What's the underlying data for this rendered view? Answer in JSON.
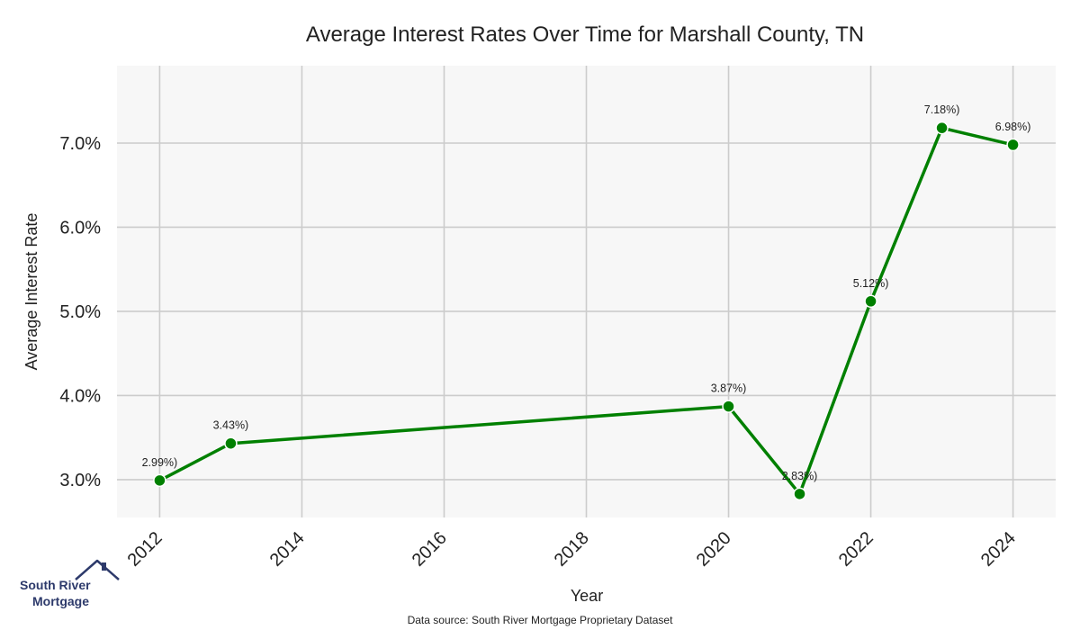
{
  "chart_data": {
    "type": "line",
    "title": "Average Interest Rates Over Time for Marshall County, TN",
    "xlabel": "Year",
    "ylabel": "Average Interest Rate",
    "x": [
      2012,
      2013,
      2020,
      2021,
      2022,
      2023,
      2024
    ],
    "values": [
      2.99,
      3.43,
      3.87,
      2.83,
      5.12,
      7.18,
      6.98
    ],
    "data_labels": [
      "2.99%)",
      "3.43%)",
      "3.87%)",
      "2.83%)",
      "5.12%)",
      "7.18%)",
      "6.98%)"
    ],
    "xlim": [
      2011.4,
      2024.6
    ],
    "ylim": [
      2.55,
      7.92
    ],
    "x_ticks": [
      2012,
      2014,
      2016,
      2018,
      2020,
      2022,
      2024
    ],
    "x_tick_labels": [
      "2012",
      "2014",
      "2016",
      "2018",
      "2020",
      "2022",
      "2024"
    ],
    "y_ticks": [
      3.0,
      4.0,
      5.0,
      6.0,
      7.0
    ],
    "y_tick_labels": [
      "3.0%",
      "4.0%",
      "5.0%",
      "6.0%",
      "7.0%"
    ],
    "grid": true,
    "line_color": "#008000",
    "plot_background": "#f7f7f7"
  },
  "footer": {
    "source": "Data source: South River Mortgage Proprietary Dataset"
  },
  "logo": {
    "line1": "South River",
    "line2": "Mortgage",
    "color": "#2d3a6b",
    "icon": "house-icon"
  }
}
